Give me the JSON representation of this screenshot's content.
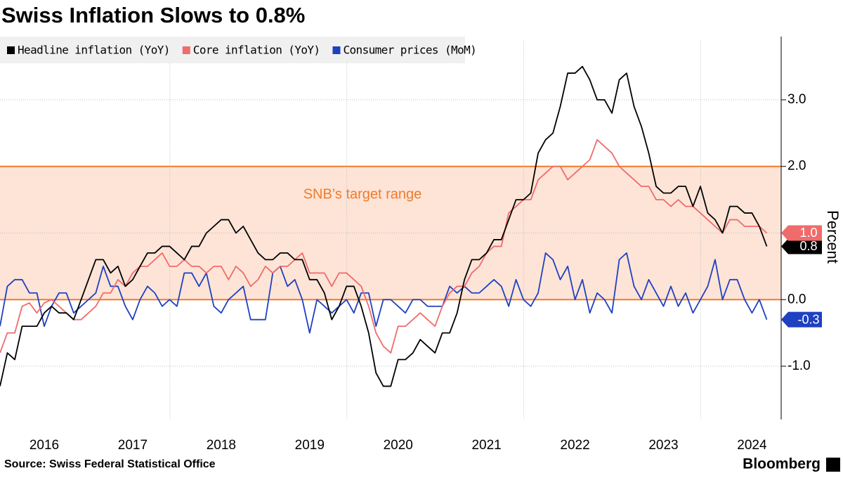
{
  "chart_data": {
    "type": "line",
    "title": "Swiss Inflation Slows to 0.8%",
    "y_label": "Percent",
    "source": "Source: Swiss Federal Statistical Office",
    "brand": "Bloomberg",
    "band": {
      "range": [
        0,
        2
      ],
      "label": "SNB’s target range",
      "color": "#f07b2a",
      "fill": "#fde4d7"
    },
    "x": [
      2016,
      2016.083,
      2016.167,
      2016.25,
      2016.333,
      2016.417,
      2016.5,
      2016.583,
      2016.667,
      2016.75,
      2016.833,
      2016.917,
      2017,
      2017.083,
      2017.167,
      2017.25,
      2017.333,
      2017.417,
      2017.5,
      2017.583,
      2017.667,
      2017.75,
      2017.833,
      2017.917,
      2018,
      2018.083,
      2018.167,
      2018.25,
      2018.333,
      2018.417,
      2018.5,
      2018.583,
      2018.667,
      2018.75,
      2018.833,
      2018.917,
      2019,
      2019.083,
      2019.167,
      2019.25,
      2019.333,
      2019.417,
      2019.5,
      2019.583,
      2019.667,
      2019.75,
      2019.833,
      2019.917,
      2020,
      2020.083,
      2020.167,
      2020.25,
      2020.333,
      2020.417,
      2020.5,
      2020.583,
      2020.667,
      2020.75,
      2020.833,
      2020.917,
      2021,
      2021.083,
      2021.167,
      2021.25,
      2021.333,
      2021.417,
      2021.5,
      2021.583,
      2021.667,
      2021.75,
      2021.833,
      2021.917,
      2022,
      2022.083,
      2022.167,
      2022.25,
      2022.333,
      2022.417,
      2022.5,
      2022.583,
      2022.667,
      2022.75,
      2022.833,
      2022.917,
      2023,
      2023.083,
      2023.167,
      2023.25,
      2023.333,
      2023.417,
      2023.5,
      2023.583,
      2023.667,
      2023.75,
      2023.833,
      2023.917,
      2024,
      2024.083,
      2024.167,
      2024.25,
      2024.333,
      2024.417,
      2024.5,
      2024.583,
      2024.667
    ],
    "xlim": [
      2016,
      2024.83
    ],
    "xticks": [
      {
        "value": 2016.5,
        "label": "2016"
      },
      {
        "value": 2017.5,
        "label": "2017"
      },
      {
        "value": 2018.5,
        "label": "2018"
      },
      {
        "value": 2019.5,
        "label": "2019"
      },
      {
        "value": 2020.5,
        "label": "2020"
      },
      {
        "value": 2021.5,
        "label": "2021"
      },
      {
        "value": 2022.5,
        "label": "2022"
      },
      {
        "value": 2023.5,
        "label": "2023"
      },
      {
        "value": 2024.5,
        "label": "2024"
      }
    ],
    "x_grid": [
      2017.92,
      2019.92,
      2021.92,
      2023.92
    ],
    "ylim": [
      -1.8,
      3.9
    ],
    "yticks": [
      {
        "value": -1,
        "label": "-1.0"
      },
      {
        "value": 0,
        "label": "0.0"
      },
      {
        "value": 1,
        "label": "1.0"
      },
      {
        "value": 2,
        "label": "2.0"
      },
      {
        "value": 3,
        "label": "3.0"
      }
    ],
    "grid": true,
    "series": [
      {
        "name": "Headline inflation (YoY)",
        "color": "#000000",
        "end_label": "0.8",
        "values": [
          -1.3,
          -0.8,
          -0.9,
          -0.4,
          -0.4,
          -0.4,
          -0.2,
          -0.1,
          -0.2,
          -0.2,
          -0.3,
          0.0,
          0.3,
          0.6,
          0.6,
          0.4,
          0.5,
          0.2,
          0.3,
          0.5,
          0.7,
          0.7,
          0.8,
          0.8,
          0.7,
          0.6,
          0.8,
          0.8,
          1.0,
          1.1,
          1.2,
          1.2,
          1.0,
          1.1,
          0.9,
          0.7,
          0.6,
          0.6,
          0.7,
          0.7,
          0.6,
          0.6,
          0.3,
          0.3,
          0.1,
          -0.3,
          -0.1,
          0.2,
          0.2,
          -0.1,
          -0.5,
          -1.1,
          -1.3,
          -1.3,
          -0.9,
          -0.9,
          -0.8,
          -0.6,
          -0.7,
          -0.8,
          -0.5,
          -0.5,
          -0.2,
          0.3,
          0.6,
          0.6,
          0.7,
          0.9,
          0.9,
          1.2,
          1.5,
          1.5,
          1.6,
          2.2,
          2.4,
          2.5,
          2.9,
          3.4,
          3.4,
          3.5,
          3.3,
          3.0,
          3.0,
          2.8,
          3.3,
          3.4,
          2.9,
          2.6,
          2.2,
          1.7,
          1.6,
          1.6,
          1.7,
          1.7,
          1.4,
          1.7,
          1.3,
          1.2,
          1.0,
          1.4,
          1.4,
          1.3,
          1.3,
          1.1,
          0.8
        ]
      },
      {
        "name": "Core inflation (YoY)",
        "color": "#f06b6b",
        "end_label": "1.0",
        "values": [
          -0.8,
          -0.5,
          -0.5,
          -0.1,
          -0.05,
          -0.2,
          -0.05,
          0.0,
          -0.1,
          -0.2,
          -0.3,
          -0.3,
          -0.2,
          -0.1,
          0.1,
          0.1,
          0.3,
          0.2,
          0.4,
          0.5,
          0.5,
          0.6,
          0.7,
          0.5,
          0.5,
          0.6,
          0.5,
          0.5,
          0.4,
          0.5,
          0.5,
          0.3,
          0.5,
          0.4,
          0.2,
          0.3,
          0.5,
          0.4,
          0.5,
          0.5,
          0.6,
          0.7,
          0.4,
          0.4,
          0.4,
          0.2,
          0.4,
          0.4,
          0.3,
          0.2,
          -0.1,
          -0.5,
          -0.7,
          -0.8,
          -0.4,
          -0.4,
          -0.3,
          -0.2,
          -0.3,
          -0.4,
          -0.1,
          0.1,
          0.2,
          0.2,
          0.4,
          0.5,
          0.7,
          0.8,
          0.8,
          1.3,
          1.4,
          1.5,
          1.5,
          1.8,
          1.9,
          2.0,
          2.0,
          1.8,
          1.9,
          2.0,
          2.1,
          2.4,
          2.3,
          2.2,
          2.0,
          1.9,
          1.8,
          1.7,
          1.7,
          1.5,
          1.5,
          1.4,
          1.5,
          1.4,
          1.4,
          1.3,
          1.2,
          1.1,
          1.0,
          1.2,
          1.2,
          1.1,
          1.1,
          1.1,
          1.0
        ]
      },
      {
        "name": "Consumer prices (MoM)",
        "color": "#1f40c0",
        "end_label": "-0.3",
        "values": [
          -0.4,
          0.2,
          0.3,
          0.3,
          0.1,
          0.1,
          -0.4,
          -0.1,
          0.1,
          0.1,
          -0.2,
          -0.1,
          0.0,
          0.1,
          0.5,
          0.2,
          0.2,
          -0.1,
          -0.3,
          0.0,
          0.2,
          0.1,
          -0.1,
          0.0,
          -0.1,
          0.4,
          0.4,
          0.2,
          0.4,
          -0.1,
          -0.2,
          0.0,
          0.1,
          0.2,
          -0.3,
          -0.3,
          -0.3,
          0.4,
          0.5,
          0.2,
          0.3,
          0.0,
          -0.5,
          0.0,
          -0.1,
          -0.2,
          -0.1,
          0.0,
          -0.2,
          0.1,
          0.1,
          -0.4,
          0.0,
          0.0,
          -0.1,
          -0.2,
          0.0,
          0.0,
          -0.1,
          -0.1,
          -0.1,
          0.2,
          0.1,
          0.2,
          0.1,
          0.1,
          0.2,
          0.3,
          0.2,
          -0.1,
          0.3,
          0.0,
          -0.1,
          0.1,
          0.7,
          0.6,
          0.3,
          0.5,
          0.0,
          0.3,
          -0.2,
          0.1,
          0.0,
          -0.2,
          0.6,
          0.7,
          0.2,
          0.0,
          0.3,
          0.1,
          -0.1,
          0.2,
          -0.1,
          0.1,
          -0.2,
          0.0,
          0.2,
          0.6,
          0.0,
          0.3,
          0.3,
          0.0,
          -0.2,
          0.0,
          -0.3
        ]
      }
    ]
  }
}
